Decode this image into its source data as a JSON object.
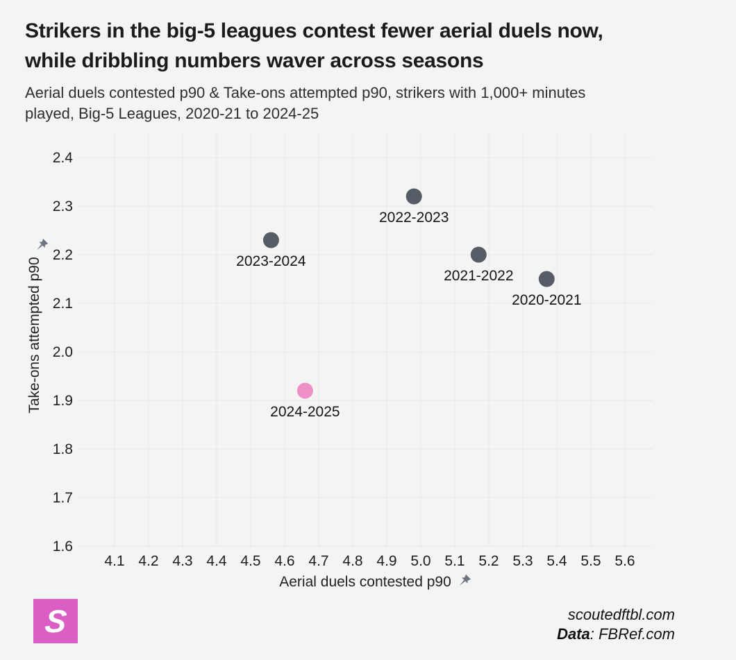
{
  "page": {
    "background": "#f4f4f2",
    "title_line1": "Strikers in the big-5 leagues contest fewer aerial duels now,",
    "title_line2": "while dribbling numbers waver across seasons",
    "subtitle_line1": "Aerial duels contested p90 & Take-ons attempted p90, strikers with 1,000+ minutes",
    "subtitle_line2": "played, Big-5 Leagues, 2020-21 to 2024-25"
  },
  "chart_data": {
    "type": "scatter",
    "title": "Strikers in the big-5 leagues contest fewer aerial duels now, while dribbling numbers waver across seasons",
    "subtitle": "Aerial duels contested p90 & Take-ons attempted p90, strikers with 1,000+ minutes played, Big-5 Leagues, 2020-21 to 2024-25",
    "xlabel": "Aerial duels contested p90",
    "ylabel": "Take-ons attempted p90",
    "xlim": [
      4.05,
      5.68
    ],
    "ylim": [
      1.55,
      2.43
    ],
    "x_ticks": [
      "4.1",
      "4.2",
      "4.3",
      "4.4",
      "4.5",
      "4.6",
      "4.7",
      "4.8",
      "4.9",
      "5.0",
      "5.1",
      "5.2",
      "5.3",
      "5.4",
      "5.5",
      "5.6"
    ],
    "y_ticks": [
      "2.4",
      "2.3",
      "2.2",
      "2.1",
      "2.0",
      "1.9",
      "1.8",
      "1.7",
      "1.6"
    ],
    "grid": true,
    "legend": "none",
    "point_color_default": "#565c66",
    "point_color_highlight": "#ee90c7",
    "points": [
      {
        "label": "2020-2021",
        "x": 5.37,
        "y": 2.15,
        "color": "#565c66",
        "highlight": false
      },
      {
        "label": "2021-2022",
        "x": 5.17,
        "y": 2.2,
        "color": "#565c66",
        "highlight": false
      },
      {
        "label": "2022-2023",
        "x": 4.98,
        "y": 2.32,
        "color": "#565c66",
        "highlight": false
      },
      {
        "label": "2023-2024",
        "x": 4.56,
        "y": 2.23,
        "color": "#565c66",
        "highlight": false
      },
      {
        "label": "2024-2025",
        "x": 4.66,
        "y": 1.92,
        "color": "#ee90c7",
        "highlight": true
      }
    ]
  },
  "footer": {
    "logo_letter": "S",
    "logo_color": "#da5ec3",
    "site": "scoutedftbl.com",
    "data_label": "Data",
    "data_source": ": FBRef.com"
  }
}
